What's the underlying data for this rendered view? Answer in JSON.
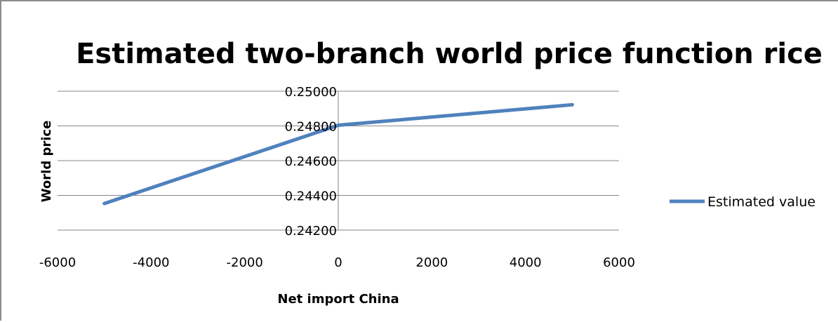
{
  "chart_data": {
    "type": "line",
    "title": "Estimated two-branch world price function rice",
    "xlabel": "Net import China",
    "ylabel": "World price",
    "xlim": [
      -6000,
      6000
    ],
    "ylim": [
      0.242,
      0.25
    ],
    "x_ticks": [
      "-6000",
      "-4000",
      "-2000",
      "0",
      "2000",
      "4000",
      "6000"
    ],
    "y_ticks": [
      "0.24200",
      "0.24400",
      "0.24600",
      "0.24800",
      "0.25000"
    ],
    "grid": true,
    "legend_position": "right",
    "series": [
      {
        "name": "Estimated value",
        "color": "#4f81bd",
        "x": [
          -5000,
          0,
          5000
        ],
        "y": [
          0.24353,
          0.24804,
          0.24922
        ]
      }
    ]
  }
}
